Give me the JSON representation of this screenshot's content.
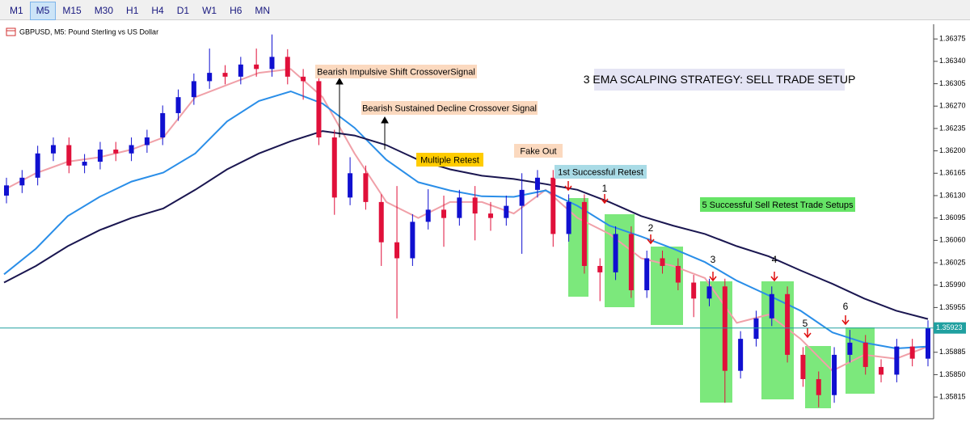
{
  "toolbar": {
    "timeframes": [
      "M1",
      "M5",
      "M15",
      "M30",
      "H1",
      "H4",
      "D1",
      "W1",
      "H6",
      "MN"
    ],
    "active": "M5"
  },
  "chart_data": {
    "type": "candlestick",
    "title": "GBPUSD, M5: Pound Sterling vs US Dollar",
    "ylim": [
      1.35781,
      1.36398
    ],
    "yticks": [
      1.36375,
      {
        "value": 1.3634,
        "label": "1.36340"
      },
      1.36305,
      {
        "value": 1.3627,
        "label": "1.36270"
      },
      1.36235,
      {
        "value": 1.362,
        "label": "1.36200"
      },
      1.36165,
      {
        "value": 1.3613,
        "label": "1.36130"
      },
      1.36095,
      {
        "value": 1.3606,
        "label": "1.36060"
      },
      1.36025,
      {
        "value": 1.3599,
        "label": "1.35990"
      },
      1.35955,
      1.35885,
      {
        "value": 1.3585,
        "label": "1.35850"
      },
      1.35815
    ],
    "up_color": "#1010d0",
    "down_color": "#e0103a",
    "open": [
      1.3613,
      1.36146,
      1.36158,
      1.36196,
      1.36209,
      1.36177,
      1.36183,
      1.36202,
      1.36196,
      1.36209,
      1.36221,
      1.36259,
      1.36284,
      1.36309,
      1.36322,
      1.36316,
      1.36335,
      1.36328,
      1.36347,
      1.36316,
      1.36309,
      1.36221,
      1.36127,
      1.36165,
      1.3612,
      1.36057,
      1.36032,
      1.36089,
      1.36108,
      1.36095,
      1.36127,
      1.36102,
      1.36095,
      1.36114,
      1.36139,
      1.36158,
      1.3607,
      1.3612,
      1.3602,
      1.3601,
      1.3607,
      1.35982,
      1.36032,
      1.3602,
      1.35994,
      1.35969,
      1.35988,
      1.35856,
      1.35906,
      1.35938,
      1.35976,
      1.35881,
      1.35843,
      1.35818,
      1.35881,
      1.359,
      1.35862,
      1.3585,
      1.35894,
      1.35875
    ],
    "high": [
      1.36158,
      1.3617,
      1.36208,
      1.36221,
      1.36221,
      1.36195,
      1.36214,
      1.36214,
      1.36221,
      1.36233,
      1.36271,
      1.36296,
      1.36321,
      1.3636,
      1.36334,
      1.36347,
      1.3636,
      1.36382,
      1.36359,
      1.36328,
      1.36321,
      1.36233,
      1.3619,
      1.36177,
      1.36132,
      1.36145,
      1.36101,
      1.3614,
      1.3613,
      1.36139,
      1.36145,
      1.3612,
      1.3613,
      1.36165,
      1.3617,
      1.3617,
      1.36132,
      1.36132,
      1.36032,
      1.36082,
      1.36082,
      1.36044,
      1.36044,
      1.36032,
      1.36006,
      1.36,
      1.36,
      1.35918,
      1.3595,
      1.35988,
      1.35988,
      1.35893,
      1.35855,
      1.35893,
      1.3592,
      1.35912,
      1.35874,
      1.35906,
      1.35906,
      1.35935
    ],
    "low": [
      1.36118,
      1.36134,
      1.36146,
      1.36184,
      1.36165,
      1.36165,
      1.36171,
      1.36184,
      1.36184,
      1.36197,
      1.36209,
      1.36247,
      1.36272,
      1.36297,
      1.36304,
      1.36304,
      1.36316,
      1.36316,
      1.36304,
      1.3628,
      1.36209,
      1.361,
      1.36115,
      1.36108,
      1.3602,
      1.35938,
      1.3602,
      1.36077,
      1.3605,
      1.36083,
      1.3606,
      1.36075,
      1.36083,
      1.36039,
      1.36127,
      1.3605,
      1.36058,
      1.36008,
      1.35965,
      1.35998,
      1.3597,
      1.3597,
      1.36008,
      1.35982,
      1.3594,
      1.35957,
      1.35806,
      1.35844,
      1.35894,
      1.35926,
      1.35869,
      1.35831,
      1.35799,
      1.35806,
      1.35869,
      1.3585,
      1.35838,
      1.35838,
      1.35863,
      1.35863
    ],
    "close": [
      1.36146,
      1.36158,
      1.36196,
      1.36209,
      1.36177,
      1.36183,
      1.36202,
      1.36196,
      1.36209,
      1.36221,
      1.36259,
      1.36284,
      1.36309,
      1.36322,
      1.36316,
      1.36335,
      1.36328,
      1.36347,
      1.36316,
      1.36309,
      1.36221,
      1.36127,
      1.36165,
      1.3612,
      1.36057,
      1.36032,
      1.36089,
      1.36108,
      1.36095,
      1.36127,
      1.36102,
      1.36095,
      1.36114,
      1.36139,
      1.36158,
      1.3607,
      1.3612,
      1.3602,
      1.3601,
      1.3607,
      1.35982,
      1.36032,
      1.3602,
      1.35994,
      1.35969,
      1.35988,
      1.35856,
      1.35906,
      1.35938,
      1.35976,
      1.35881,
      1.35843,
      1.35818,
      1.35881,
      1.359,
      1.35862,
      1.3585,
      1.35894,
      1.35875,
      1.35923
    ],
    "series": [
      {
        "color": "#1a1650",
        "values": [
          1.35994,
          1.3602,
          1.36051,
          1.36076,
          1.36095,
          1.3611,
          1.36139,
          1.36171,
          1.36196,
          1.36215,
          1.36231,
          1.36224,
          1.36209,
          1.36186,
          1.36171,
          1.36161,
          1.36156,
          1.36148,
          1.36139,
          1.3612,
          1.36098,
          1.36083,
          1.3607,
          1.36051,
          1.36035,
          1.36013,
          1.35992,
          1.35969,
          1.3595,
          1.35937
        ]
      },
      {
        "color": "#2a8ee8",
        "values": [
          1.36007,
          1.36047,
          1.36098,
          1.36128,
          1.36152,
          1.36166,
          1.36196,
          1.36246,
          1.36278,
          1.36293,
          1.36274,
          1.36236,
          1.36186,
          1.36151,
          1.36138,
          1.36129,
          1.36128,
          1.36138,
          1.36114,
          1.36083,
          1.36066,
          1.36047,
          1.36026,
          1.35997,
          1.35974,
          1.3595,
          1.35916,
          1.359,
          1.35891,
          1.35894
        ]
      },
      {
        "color": "#f0a0a8",
        "values": [
          1.36139,
          1.36165,
          1.36183,
          1.3619,
          1.36202,
          1.36221,
          1.36284,
          1.36303,
          1.36322,
          1.36328,
          1.36284,
          1.36196,
          1.3612,
          1.36095,
          1.3612,
          1.3612,
          1.36102,
          1.36139,
          1.36095,
          1.3607,
          1.36032,
          1.3602,
          1.36001,
          1.35931,
          1.35944,
          1.35906,
          1.35856,
          1.35881,
          1.35875,
          1.35894
        ]
      }
    ],
    "last_price": 1.35923,
    "last_price_color": "#20a0a0",
    "annotations": [
      {
        "text": "Bearish Impulsive Shift CrossoverSignal",
        "color": "#fbd9bf"
      },
      {
        "text": "Bearish Sustained Decline Crossover Signal",
        "color": "#fbd9bf"
      },
      {
        "text": "Multiple Retest",
        "color": "#ffcc00"
      },
      {
        "text": "Fake Out",
        "color": "#fbd9bf"
      },
      {
        "text": "1st Successful Retest",
        "color": "#a9dbe6"
      },
      {
        "text": "3 EMA SCALPING STRATEGY: SELL TRADE SETUP",
        "color": "#e4e4f4"
      },
      {
        "text": "5 Successful Sell Retest Trade Setups",
        "color": "#66e466"
      }
    ],
    "setup_labels": [
      "1",
      "2",
      "3",
      "4",
      "5",
      "6"
    ]
  }
}
